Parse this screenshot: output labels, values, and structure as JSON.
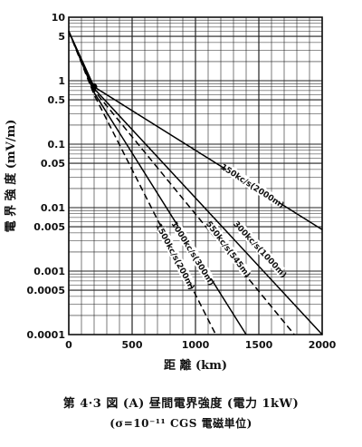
{
  "chart_data": {
    "type": "line",
    "title": "",
    "xlabel": "距 離 (km)",
    "ylabel": "電 界 強 度 (mV/m)",
    "xlim": [
      0,
      2000
    ],
    "ylim": [
      0.0001,
      10
    ],
    "yscale": "log",
    "grid": true,
    "x_ticks": [
      "0",
      "500",
      "1000",
      "1500",
      "2000"
    ],
    "y_ticks": [
      "10",
      "5",
      "1",
      "0.5",
      "0.1",
      "0.05",
      "0.01",
      "0.005",
      "0.001",
      "0.0005",
      "0.0001"
    ],
    "series": [
      {
        "name": "150kc/s(2000m)",
        "style": "solid",
        "x": [
          0,
          200,
          2000
        ],
        "y": [
          6,
          0.8,
          0.0045
        ]
      },
      {
        "name": "300kc/s(1000m)",
        "style": "solid",
        "x": [
          0,
          200,
          2000
        ],
        "y": [
          6,
          0.75,
          0.0001
        ]
      },
      {
        "name": "550kc/s(545m)",
        "style": "dashed",
        "x": [
          0,
          200,
          1780
        ],
        "y": [
          6,
          0.7,
          0.0001
        ]
      },
      {
        "name": "1000kc/s(300m)",
        "style": "solid",
        "x": [
          0,
          200,
          1400
        ],
        "y": [
          6,
          0.65,
          0.0001
        ]
      },
      {
        "name": "1500kc/s(200m)",
        "style": "dashed",
        "x": [
          0,
          200,
          1160
        ],
        "y": [
          6,
          0.6,
          0.0001
        ]
      }
    ]
  },
  "caption": {
    "line1": "第 4·3 図 (A) 昼間電界強度 (電力 1kW)",
    "line2": "(σ=10⁻¹¹ CGS 電磁単位)"
  }
}
